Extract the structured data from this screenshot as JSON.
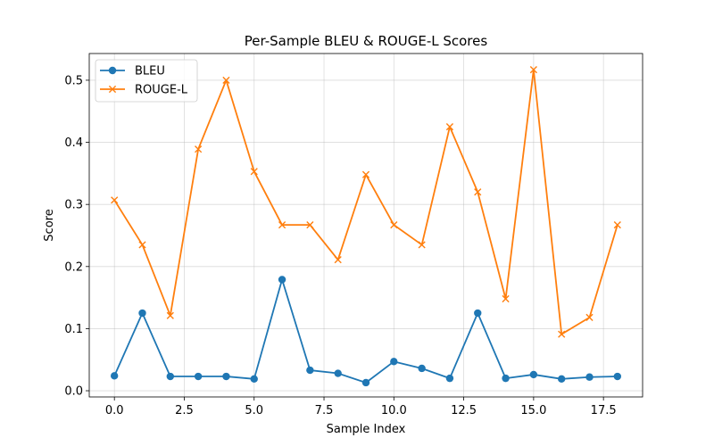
{
  "chart_data": {
    "type": "line",
    "title": "Per-Sample BLEU & ROUGE-L Scores",
    "xlabel": "Sample Index",
    "ylabel": "Score",
    "x": [
      0,
      1,
      2,
      3,
      4,
      5,
      6,
      7,
      8,
      9,
      10,
      11,
      12,
      13,
      14,
      15,
      16,
      17,
      18
    ],
    "xlim": [
      -0.9,
      18.9
    ],
    "ylim": [
      -0.01,
      0.543
    ],
    "xticks": [
      0.0,
      2.5,
      5.0,
      7.5,
      10.0,
      12.5,
      15.0,
      17.5
    ],
    "xtick_labels": [
      "0.0",
      "2.5",
      "5.0",
      "7.5",
      "10.0",
      "12.5",
      "15.0",
      "17.5"
    ],
    "yticks": [
      0.0,
      0.1,
      0.2,
      0.3,
      0.4,
      0.5
    ],
    "ytick_labels": [
      "0.0",
      "0.1",
      "0.2",
      "0.3",
      "0.4",
      "0.5"
    ],
    "grid": true,
    "legend_position": "top-left",
    "series": [
      {
        "name": "BLEU",
        "color": "#1f77b4",
        "marker": "circle",
        "values": [
          0.024,
          0.125,
          0.023,
          0.023,
          0.023,
          0.019,
          0.179,
          0.033,
          0.028,
          0.013,
          0.047,
          0.036,
          0.02,
          0.125,
          0.02,
          0.026,
          0.019,
          0.022,
          0.023
        ]
      },
      {
        "name": "ROUGE-L",
        "color": "#ff7f0e",
        "marker": "x",
        "values": [
          0.307,
          0.235,
          0.121,
          0.389,
          0.5,
          0.353,
          0.267,
          0.267,
          0.211,
          0.348,
          0.267,
          0.235,
          0.425,
          0.32,
          0.148,
          0.517,
          0.091,
          0.118,
          0.267
        ]
      }
    ]
  }
}
